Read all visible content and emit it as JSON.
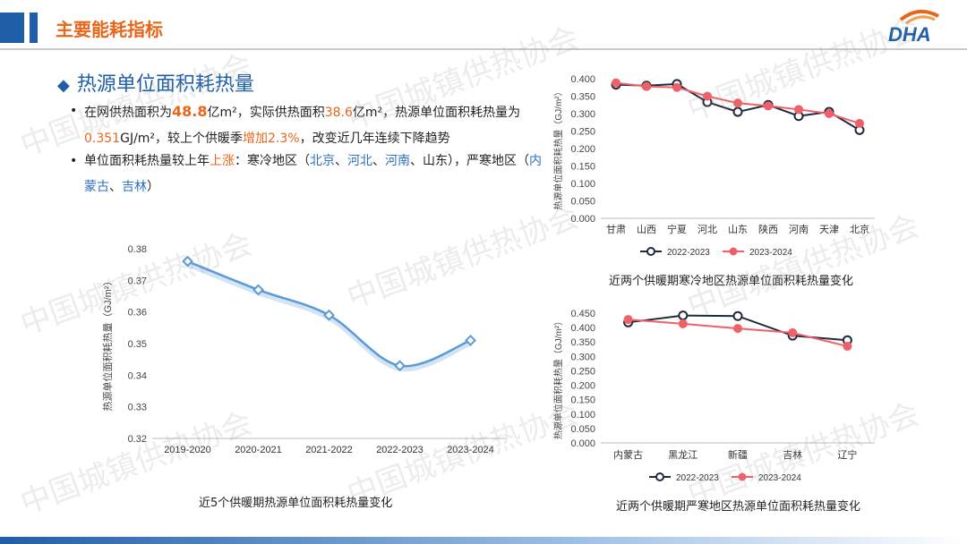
{
  "header": {
    "title": "主要能耗指标",
    "logo_text": "DHA"
  },
  "section": {
    "marker": "◆",
    "title": "热源单位面积耗热量"
  },
  "bullets": {
    "b1": {
      "p1": "在网供热面积为",
      "v1": "48.8",
      "p2": "亿m²，实际供热面积",
      "v2": "38.6",
      "p3": "亿m²，热源单位面积耗热量为",
      "v3": "0.351",
      "p4": "GJ/m²，较上个供暖季",
      "v4": "增加2.3%",
      "p5": "，改变近几年连续下降趋势"
    },
    "b2": {
      "p1": "单位面积耗热量较上年",
      "v1": "上涨",
      "p2": "：寒冷地区（",
      "r1": "北京",
      "s1": "、",
      "r2": "河北",
      "s2": "、",
      "r3": "河南",
      "p3": "、山东），严寒地区（",
      "r4": "内蒙古",
      "s3": "、",
      "r5": "吉林",
      "p4": "）"
    }
  },
  "watermark": "中国城镇供热协会",
  "captions": {
    "left": "近5个供暖期热源单位面积耗热量变化",
    "top_right": "近两个供暖期寒冷地区热源单位面积耗热量变化",
    "bottom_right": "近两个供暖期严寒地区热源单位面积耗热量变化"
  },
  "colors": {
    "orange": "#e8651a",
    "blue": "#1f5fa8",
    "line_left": "#5b9bd5",
    "series_dark": "#1f2a3c",
    "series_red": "#f06068"
  },
  "chart_data": [
    {
      "id": "left",
      "type": "line",
      "title": "",
      "ylabel": "热源单位面积耗热量（GJ/m²）",
      "xlabel": "",
      "categories": [
        "2019-2020",
        "2020-2021",
        "2021-2022",
        "2022-2023",
        "2023-2024"
      ],
      "series": [
        {
          "values": [
            0.376,
            0.367,
            0.359,
            0.343,
            0.351
          ]
        }
      ],
      "ylim": [
        0.32,
        0.38
      ],
      "yticks": [
        "0.32",
        "0.33",
        "0.34",
        "0.35",
        "0.36",
        "0.37",
        "0.38"
      ],
      "grid": false,
      "legend": "none"
    },
    {
      "id": "top_right",
      "type": "line",
      "title": "",
      "ylabel": "热源单位面积耗热量（GJ/m²）",
      "xlabel": "",
      "categories": [
        "甘肃",
        "山西",
        "宁夏",
        "河北",
        "山东",
        "陕西",
        "河南",
        "天津",
        "北京"
      ],
      "series": [
        {
          "name": "2022-2023",
          "values": [
            0.383,
            0.38,
            0.385,
            0.333,
            0.305,
            0.325,
            0.293,
            0.305,
            0.253
          ]
        },
        {
          "name": "2023-2024",
          "values": [
            0.388,
            0.378,
            0.375,
            0.35,
            0.33,
            0.322,
            0.312,
            0.3,
            0.272
          ]
        }
      ],
      "ylim": [
        0,
        0.4
      ],
      "yticks": [
        "0.000",
        "0.050",
        "0.100",
        "0.150",
        "0.200",
        "0.250",
        "0.300",
        "0.350",
        "0.400"
      ],
      "grid": false,
      "legend": "bottom"
    },
    {
      "id": "bottom_right",
      "type": "line",
      "title": "",
      "ylabel": "热源单位面积耗热量（GJ/m²）",
      "xlabel": "",
      "categories": [
        "内蒙古",
        "黑龙江",
        "新疆",
        "吉林",
        "辽宁"
      ],
      "series": [
        {
          "name": "2022-2023",
          "values": [
            0.418,
            0.442,
            0.44,
            0.372,
            0.356
          ]
        },
        {
          "name": "2023-2024",
          "values": [
            0.428,
            0.413,
            0.397,
            0.382,
            0.335
          ]
        }
      ],
      "ylim": [
        0,
        0.45
      ],
      "yticks": [
        "0.000",
        "0.050",
        "0.100",
        "0.150",
        "0.200",
        "0.250",
        "0.300",
        "0.350",
        "0.400",
        "0.450"
      ],
      "grid": false,
      "legend": "bottom"
    }
  ]
}
